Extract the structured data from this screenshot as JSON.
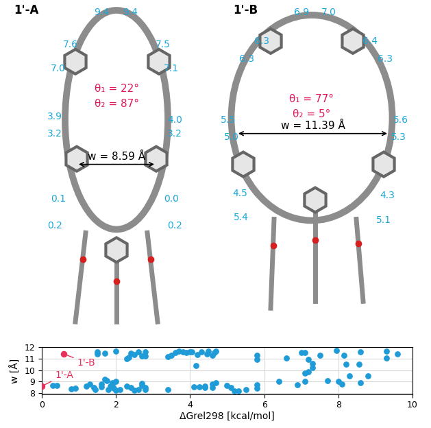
{
  "structures": [
    {
      "name": "1'-A",
      "theta1": "θ₁ = 22°",
      "theta2": "θ₂ = 87°",
      "width": "w = 8.59 Å",
      "distances": [
        "9.4",
        "9.4",
        "7.6",
        "7.0",
        "3.9",
        "3.2",
        "0.1",
        "0.2",
        "7.5",
        "7.1",
        "4.0",
        "3.2",
        "0.0",
        "0.2"
      ]
    },
    {
      "name": "1'-B",
      "theta1": "θ₁ = 77°",
      "theta2": "θ₂ = 5°",
      "width": "w = 11.39 Å",
      "distances": [
        "6.9",
        "7.0",
        "6.3",
        "6.3",
        "5.5",
        "5.0",
        "4.5",
        "5.4",
        "6.4",
        "6.3",
        "5.6",
        "5.3",
        "4.3",
        "5.1"
      ]
    }
  ],
  "distance_color": "#1ba8d8",
  "angle_color": "#e0195a",
  "chart_data": {
    "type": "scatter",
    "xlabel": "ΔGrel298 [kcal/mol]",
    "ylabel": "w [Å]",
    "color": "#1f9bd7",
    "x": [
      0.3,
      0.4,
      0.8,
      0.9,
      1.2,
      1.3,
      1.4,
      1.45,
      1.6,
      1.6,
      1.7,
      1.75,
      1.8,
      1.85,
      1.9,
      1.9,
      2.0,
      1.95,
      2.1,
      2.0,
      2.3,
      2.4,
      2.5,
      2.6,
      2.7,
      2.7,
      2.8,
      2.8,
      3.4,
      4.1,
      4.25,
      4.4,
      4.4,
      4.6,
      4.6,
      4.7,
      5.0,
      5.1,
      5.2,
      5.3,
      5.5,
      5.8,
      5.8,
      6.4,
      6.9,
      7.1,
      7.1,
      7.2,
      7.3,
      7.7,
      8.0,
      8.1,
      8.3,
      8.6,
      8.8,
      8.2,
      8.55,
      1.5,
      1.5,
      1.7,
      2.0,
      2.3,
      2.35,
      2.4,
      2.5,
      2.6,
      2.7,
      2.8,
      2.8,
      3.4,
      3.5,
      3.6,
      3.7,
      3.8,
      3.9,
      4.0,
      4.05,
      4.2,
      4.3,
      4.15,
      4.45,
      4.5,
      4.6,
      4.65,
      4.7,
      5.8,
      5.8,
      6.6,
      7.0,
      7.1,
      7.2,
      7.3,
      7.5,
      7.95,
      8.15,
      8.6,
      9.3,
      9.3,
      9.6
    ],
    "values": [
      8.65,
      8.65,
      8.35,
      8.4,
      8.6,
      8.8,
      8.45,
      8.3,
      8.55,
      8.8,
      9.2,
      9.1,
      8.3,
      8.6,
      8.9,
      8.75,
      9.0,
      8.4,
      8.3,
      8.25,
      8.6,
      8.5,
      8.25,
      8.3,
      8.85,
      8.65,
      8.5,
      8.3,
      8.3,
      8.55,
      8.55,
      8.5,
      8.6,
      8.8,
      8.45,
      8.9,
      8.65,
      8.5,
      8.2,
      8.2,
      8.3,
      8.4,
      8.7,
      9.0,
      8.7,
      9.0,
      9.75,
      9.85,
      10.2,
      9.1,
      9.0,
      8.8,
      9.5,
      8.9,
      9.5,
      10.5,
      10.5,
      11.4,
      11.6,
      11.45,
      11.65,
      11.0,
      11.1,
      11.45,
      11.35,
      11.6,
      11.25,
      11.25,
      11.6,
      11.15,
      11.3,
      11.55,
      11.65,
      11.6,
      11.55,
      11.6,
      11.6,
      11.35,
      11.6,
      10.4,
      11.4,
      11.65,
      11.3,
      11.5,
      11.65,
      11.3,
      10.9,
      11.05,
      11.5,
      11.5,
      10.9,
      10.55,
      11.3,
      11.7,
      11.3,
      11.6,
      11.65,
      11.05,
      11.4
    ],
    "annotations": [
      {
        "text": "1'-A",
        "x": 0,
        "y": 8.6,
        "color": "#e8305a"
      },
      {
        "text": "1'-B",
        "x": 0.6,
        "y": 11.4,
        "color": "#e8305a"
      }
    ],
    "xlim": [
      0,
      10
    ],
    "ylim": [
      7.9,
      12
    ],
    "xticks": [
      0,
      2,
      4,
      6,
      8,
      10
    ],
    "yticks": [
      8,
      9,
      10,
      11,
      12
    ],
    "grid": true
  }
}
